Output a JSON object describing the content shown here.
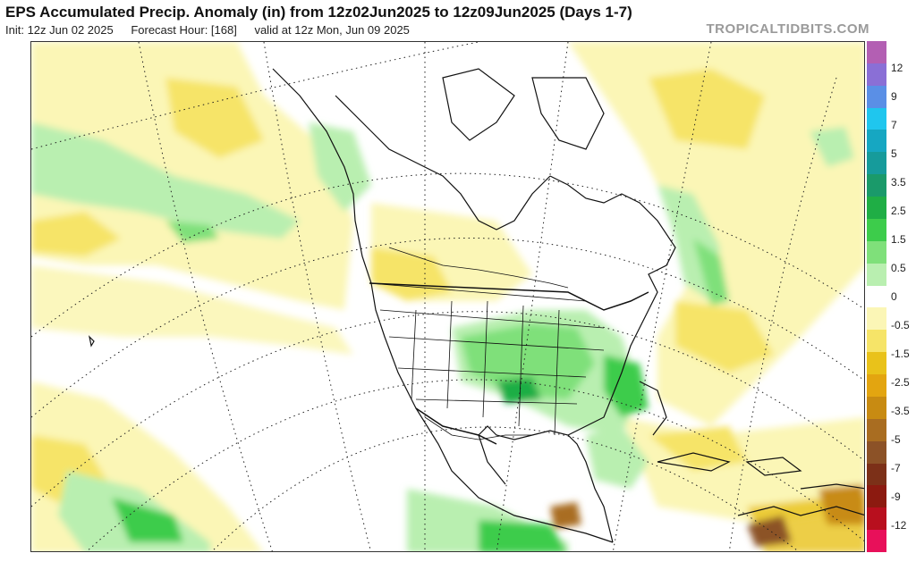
{
  "header": {
    "title": "EPS Accumulated Precip. Anomaly (in) from 12z02Jun2025 to 12z09Jun2025 (Days 1-7)",
    "init": "Init: 12z Jun 02 2025",
    "forecast_hour": "Forecast Hour: [168]",
    "valid": "valid at 12z Mon, Jun 09 2025"
  },
  "brand": "TROPICALTIDBITS.COM",
  "colorbar": {
    "colors": [
      "#b35fb3",
      "#8a6fd6",
      "#5a8fe6",
      "#1fc6ee",
      "#16a7c2",
      "#169b9b",
      "#1a9a6a",
      "#1fae45",
      "#3dcc4b",
      "#7fe07a",
      "#b9efb0",
      "#ffffff",
      "#fbf6b6",
      "#f6e468",
      "#e9c21a",
      "#e3a510",
      "#c88b12",
      "#a96d21",
      "#8c5227",
      "#7c3018",
      "#8c1a10",
      "#b80f1e",
      "#e8105a"
    ],
    "labels": [
      "12",
      "9",
      "7",
      "5",
      "3.5",
      "2.5",
      "1.5",
      "0.5",
      "0",
      "-0.5",
      "-1.5",
      "-2.5",
      "-3.5",
      "-5",
      "-7",
      "-9",
      "-12"
    ]
  }
}
